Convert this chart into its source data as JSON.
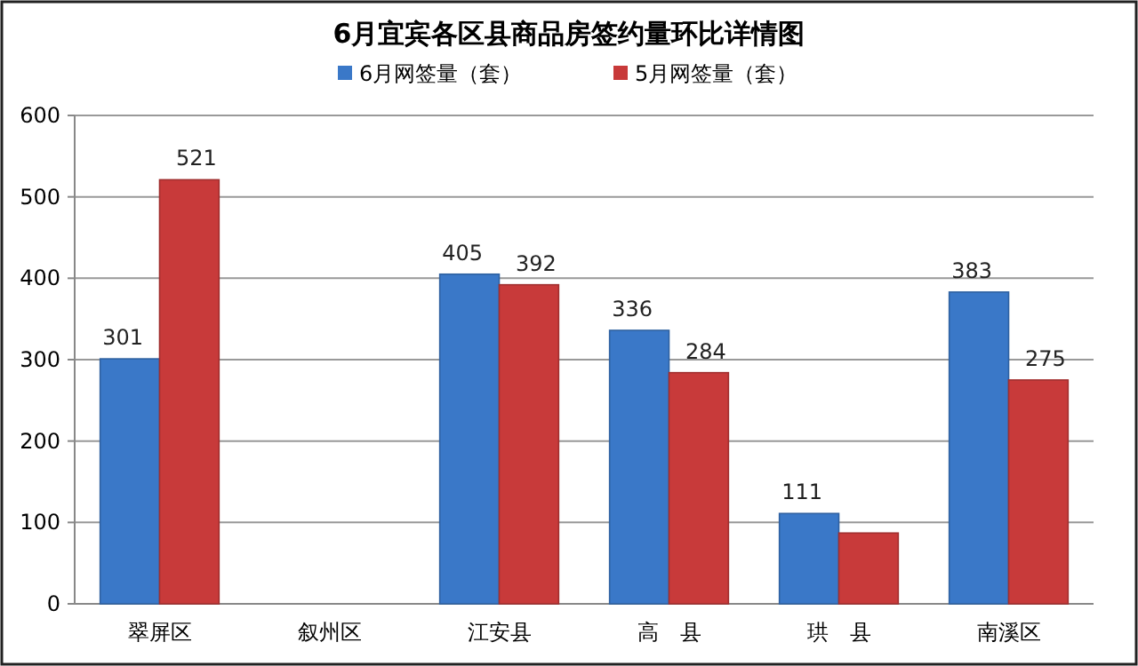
{
  "chart_data": {
    "type": "bar",
    "title": "6月宜宾各区县商品房签约量环比详情图",
    "categories": [
      "翠屏区",
      "叙州区",
      "江安县",
      "高　县",
      "珙　县",
      "南溪区"
    ],
    "series": [
      {
        "name": "6月网签量（套）",
        "color": "#3a78c8",
        "values": [
          301,
          null,
          405,
          336,
          111,
          383
        ],
        "value_labels": [
          "301",
          null,
          "405",
          "336",
          "111",
          "383"
        ]
      },
      {
        "name": "5月网签量（套）",
        "color": "#c83a3a",
        "values": [
          521,
          null,
          392,
          284,
          87,
          275
        ],
        "value_labels": [
          "521",
          null,
          "392",
          "284",
          null,
          "275"
        ]
      }
    ],
    "ylim": [
      0,
      600
    ],
    "yticks": [
      0,
      100,
      200,
      300,
      400,
      500,
      600
    ],
    "grid": "y",
    "legend": "top"
  }
}
